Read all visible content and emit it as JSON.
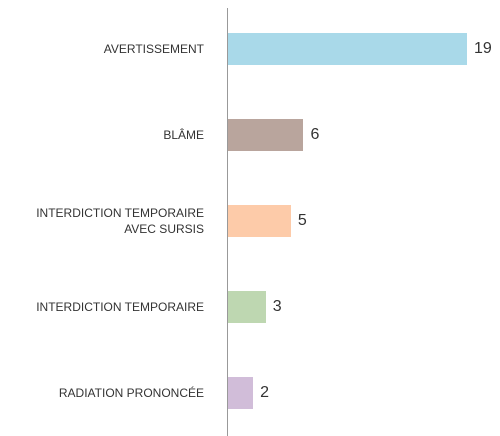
{
  "chart_data": {
    "type": "barh",
    "categories": [
      "AVERTISSEMENT",
      "BLÂME",
      "INTERDICTION TEMPORAIRE\nAVEC SURSIS",
      "INTERDICTION TEMPORAIRE",
      "RADIATION PRONONCÉE"
    ],
    "values": [
      19,
      6,
      5,
      3,
      2
    ],
    "colors": [
      "#a9d9e9",
      "#b9a59d",
      "#fdcba9",
      "#bed7b1",
      "#d1bdd9"
    ],
    "xlim": [
      0,
      19
    ]
  }
}
